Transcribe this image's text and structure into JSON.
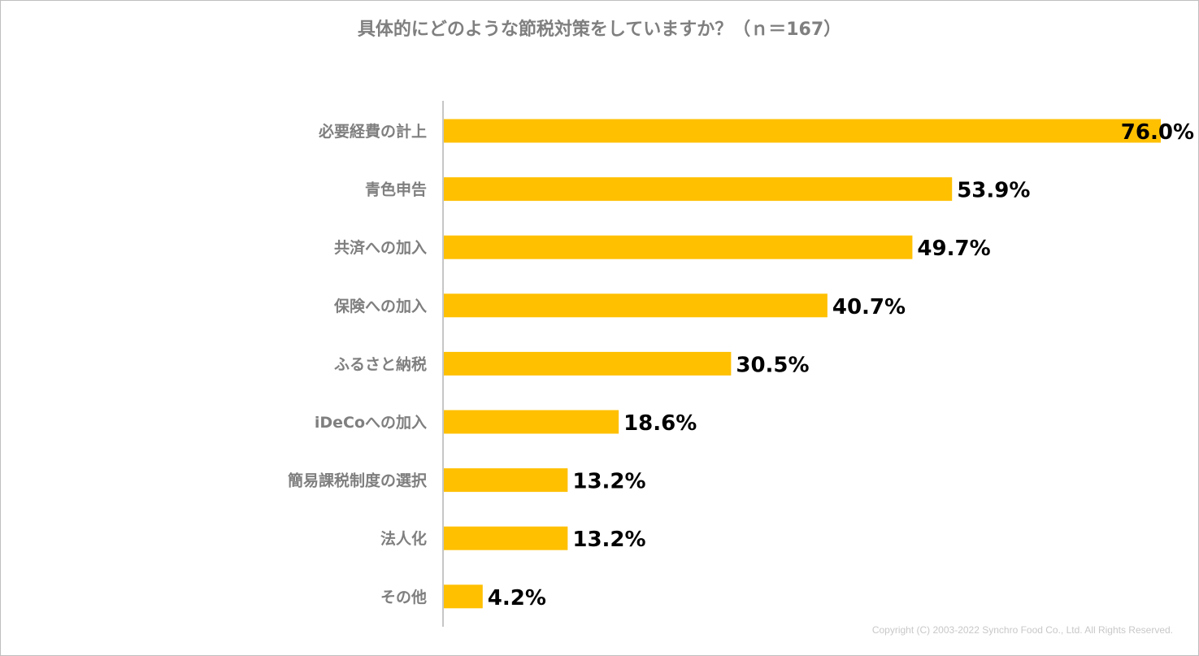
{
  "chart_data": {
    "type": "bar",
    "orientation": "horizontal",
    "title": "具体的にどのような節税対策をしていますか？（ｎ＝167）",
    "categories": [
      "必要経費の計上",
      "青色申告",
      "共済への加入",
      "保険への加入",
      "ふるさと納税",
      "iDeCoへの加入",
      "簡易課税制度の選択",
      "法人化",
      "その他"
    ],
    "values": [
      76.0,
      53.9,
      49.7,
      40.7,
      30.5,
      18.6,
      13.2,
      13.2,
      4.2
    ],
    "value_labels": [
      "76.0%",
      "53.9%",
      "49.7%",
      "40.7%",
      "30.5%",
      "18.6%",
      "13.2%",
      "13.2%",
      "4.2%"
    ],
    "xlim": [
      0,
      76
    ],
    "xlabel": "",
    "ylabel": "",
    "grid": false,
    "legend": "none",
    "bar_color": "#FFC000"
  },
  "footer": {
    "copyright": "Copyright (C) 2003-2022  Synchro Food Co., Ltd. All Rights Reserved."
  }
}
